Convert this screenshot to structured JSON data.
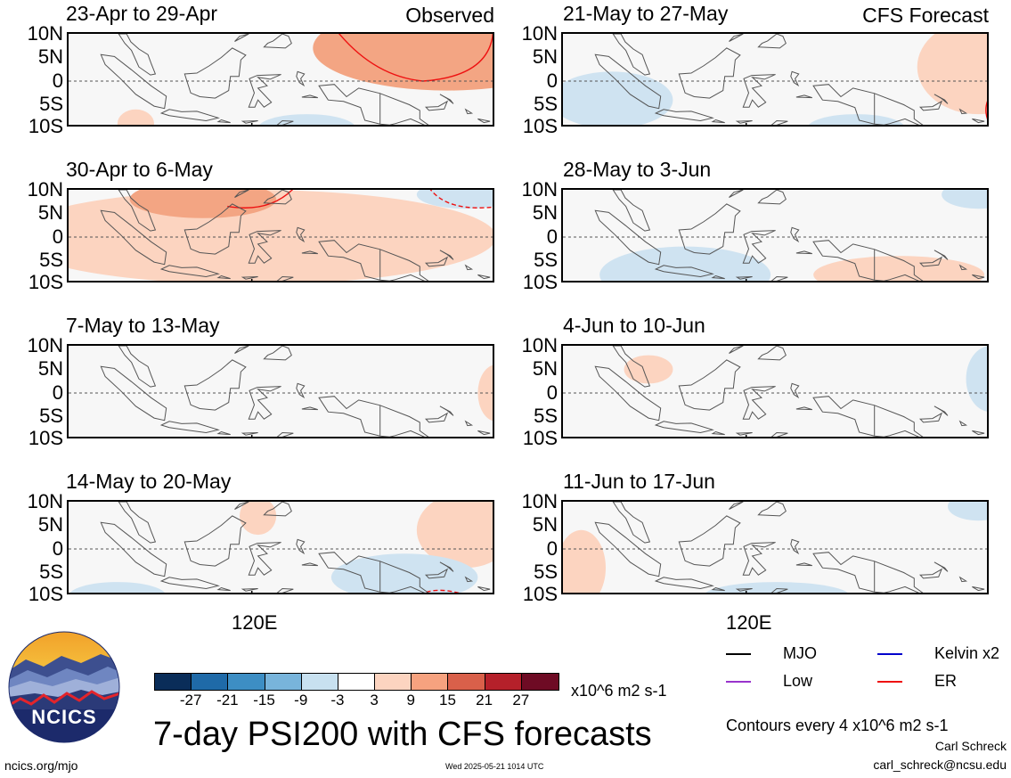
{
  "columns": {
    "left": {
      "tag": "Observed"
    },
    "right": {
      "tag": "CFS Forecast"
    }
  },
  "panels": [
    {
      "title": "23-Apr to 29-Apr",
      "anomalies": [
        {
          "type": "positive",
          "level": 9,
          "center_lon": 152,
          "center_lat": 7,
          "extent_lon": 22,
          "extent_lat": 9
        },
        {
          "type": "negative",
          "level": -3,
          "center_lon": 129,
          "center_lat": -10,
          "extent_lon": 8,
          "extent_lat": 3
        },
        {
          "type": "positive",
          "level": 3,
          "center_lon": 101,
          "center_lat": -9,
          "extent_lon": 3,
          "extent_lat": 3
        }
      ],
      "contours": [
        {
          "wave": "ER",
          "sign": "positive",
          "note": "+4 contour east of 145E, north of equator"
        }
      ]
    },
    {
      "title": "21-May to 27-May",
      "anomalies": [
        {
          "type": "negative",
          "level": -3,
          "center_lon": 98,
          "center_lat": -4,
          "extent_lon": 10,
          "extent_lat": 6
        },
        {
          "type": "positive",
          "level": 3,
          "center_lon": 158,
          "center_lat": 3,
          "extent_lon": 10,
          "extent_lat": 10
        },
        {
          "type": "negative",
          "level": -3,
          "center_lon": 138,
          "center_lat": -10,
          "extent_lon": 8,
          "extent_lat": 3
        }
      ],
      "contours": [
        {
          "wave": "ER",
          "sign": "positive",
          "note": "edge at 160E"
        }
      ]
    },
    {
      "title": "30-Apr to 6-May",
      "anomalies": [
        {
          "type": "positive",
          "level": 3,
          "center_lon": 120,
          "center_lat": 0,
          "extent_lon": 40,
          "extent_lat": 10
        },
        {
          "type": "positive",
          "level": 9,
          "center_lon": 112,
          "center_lat": 8,
          "extent_lon": 12,
          "extent_lat": 4
        },
        {
          "type": "negative",
          "level": -3,
          "center_lon": 155,
          "center_lat": 9,
          "extent_lon": 8,
          "extent_lat": 3
        }
      ],
      "contours": [
        {
          "wave": "ER",
          "sign": "positive"
        },
        {
          "wave": "ER",
          "sign": "negative"
        }
      ]
    },
    {
      "title": "28-May to 3-Jun",
      "anomalies": [
        {
          "type": "negative",
          "level": -3,
          "center_lon": 110,
          "center_lat": -8,
          "extent_lon": 14,
          "extent_lat": 6
        },
        {
          "type": "positive",
          "level": 3,
          "center_lon": 145,
          "center_lat": -8,
          "extent_lon": 14,
          "extent_lat": 4
        },
        {
          "type": "negative",
          "level": -3,
          "center_lon": 158,
          "center_lat": 9,
          "extent_lon": 6,
          "extent_lat": 3
        }
      ],
      "contours": []
    },
    {
      "title": "7-May to 13-May",
      "anomalies": [
        {
          "type": "positive",
          "level": 3,
          "center_lon": 160,
          "center_lat": 0,
          "extent_lon": 3,
          "extent_lat": 6
        }
      ],
      "contours": []
    },
    {
      "title": "4-Jun to 10-Jun",
      "anomalies": [
        {
          "type": "positive",
          "level": 3,
          "center_lon": 104,
          "center_lat": 5,
          "extent_lon": 4,
          "extent_lat": 3
        },
        {
          "type": "negative",
          "level": -3,
          "center_lon": 160,
          "center_lat": 3,
          "extent_lon": 4,
          "extent_lat": 7
        }
      ],
      "contours": []
    },
    {
      "title": "14-May to 20-May",
      "anomalies": [
        {
          "type": "positive",
          "level": 3,
          "center_lon": 121,
          "center_lat": 7,
          "extent_lon": 3,
          "extent_lat": 4
        },
        {
          "type": "positive",
          "level": 3,
          "center_lon": 155,
          "center_lat": 4,
          "extent_lon": 8,
          "extent_lat": 8
        },
        {
          "type": "negative",
          "level": -3,
          "center_lon": 145,
          "center_lat": -6,
          "extent_lon": 12,
          "extent_lat": 5
        },
        {
          "type": "negative",
          "level": -3,
          "center_lon": 98,
          "center_lat": -10,
          "extent_lon": 8,
          "extent_lat": 3
        }
      ],
      "contours": [
        {
          "wave": "ER",
          "sign": "negative",
          "note": "near 150E, 10S"
        }
      ]
    },
    {
      "title": "11-Jun to 17-Jun",
      "anomalies": [
        {
          "type": "positive",
          "level": 3,
          "center_lon": 93,
          "center_lat": -4,
          "extent_lon": 4,
          "extent_lat": 8
        },
        {
          "type": "negative",
          "level": -3,
          "center_lon": 125,
          "center_lat": -10,
          "extent_lon": 12,
          "extent_lat": 3
        },
        {
          "type": "negative",
          "level": -3,
          "center_lon": 158,
          "center_lat": 9,
          "extent_lon": 5,
          "extent_lat": 3
        }
      ],
      "contours": []
    }
  ],
  "axes": {
    "lat_labels": [
      "10N",
      "5N",
      "0",
      "5S",
      "10S"
    ],
    "lon_label": "120E"
  },
  "colorbar": {
    "ticks": [
      "-27",
      "-21",
      "-15",
      "-9",
      "-3",
      "3",
      "9",
      "15",
      "21",
      "27"
    ],
    "colors": [
      "#0a2d59",
      "#1f6aa8",
      "#3d8ec4",
      "#78b4db",
      "#c8e1f0",
      "#ffffff",
      "#fcd4c0",
      "#f6a27f",
      "#d9604a",
      "#b5202a",
      "#6e0b24"
    ],
    "units": "x10^6 m2 s-1"
  },
  "title": "7-day PSI200 with CFS forecasts",
  "legend": {
    "items": [
      {
        "label": "MJO",
        "color": "#000000"
      },
      {
        "label": "Kelvin x2",
        "color": "#0000cc"
      },
      {
        "label": "Low",
        "color": "#9933cc"
      },
      {
        "label": "ER",
        "color": "#ee1111"
      }
    ],
    "contour_note": "Contours every 4 x10^6 m2 s-1"
  },
  "credits": {
    "author": "Carl Schreck",
    "email": "carl_schreck@ncsu.edu",
    "site": "ncics.org/mjo",
    "timestamp": "Wed 2025-05-21 1014 UTC",
    "logo_text": "NCICS"
  },
  "colors": {
    "positive": "#fcd4c0",
    "positive_strong": "#f3a583",
    "negative": "#cfe3f1",
    "background": "#f7f7f7",
    "coast": "#555555",
    "er_contour": "#ee1111"
  }
}
